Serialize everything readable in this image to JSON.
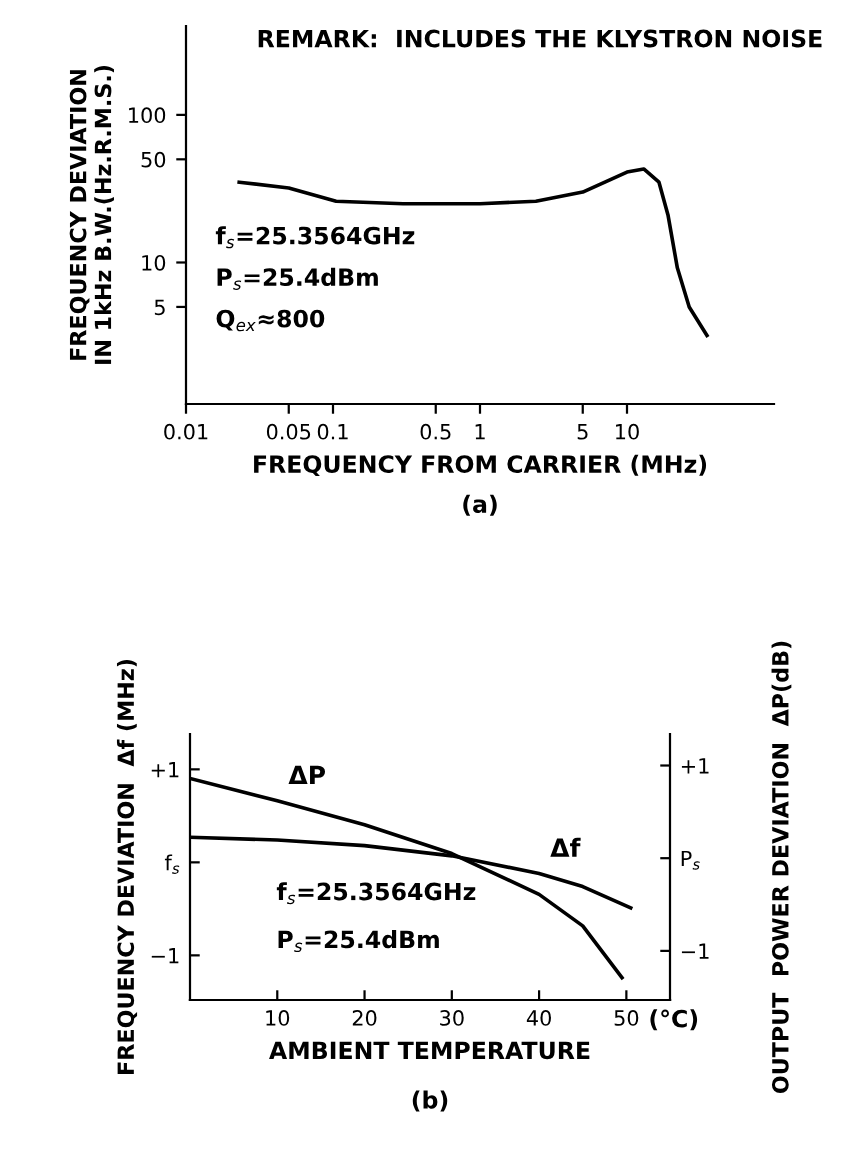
{
  "chart_data": [
    {
      "type": "line",
      "title": "REMARK:  INCLUDES THE KLYSTRON NOISE",
      "xlabel": "FREQUENCY FROM CARRIER (MHz)",
      "ylabel": "FREQUENCY DEVIATION\nIN 1kHz B.W.(Hz.R.M.S.)",
      "log": "xy",
      "series": [
        {
          "color": "#000000",
          "x": [
            0.023,
            0.05,
            0.105,
            0.3,
            1,
            2.4,
            5,
            10,
            13,
            16.5,
            19,
            22,
            26.5,
            35
          ],
          "values": [
            35,
            32,
            26,
            25,
            25,
            26,
            30,
            41,
            43,
            35,
            21,
            9.2,
            5,
            3.2
          ]
        }
      ],
      "xlim": [
        0.01,
        100
      ],
      "ylim": [
        1.1,
        400
      ],
      "xticks": [
        0.01,
        0.05,
        0.1,
        0.5,
        1,
        5,
        10
      ],
      "yticks": [
        5,
        10,
        50,
        100
      ],
      "annotations": [
        "f$_{s}$=25.3564GHz",
        "P$_{s}$=25.4dBm",
        "Q$_{ex}$≈800",
        "(a)"
      ],
      "grid": false,
      "legend": false
    },
    {
      "type": "line",
      "xlabel": "AMBIENT TEMPERATURE",
      "ylabel": "FREQUENCY DEVIATION  Δf (MHz)",
      "y2label": "OUTPUT  POWER DEVIATION  ΔP(dB)",
      "series": [
        {
          "name": "ΔP",
          "color": "#000000",
          "axis": "y2",
          "x": [
            0,
            10,
            20,
            30,
            40,
            45,
            49.5
          ],
          "values": [
            0.86,
            0.62,
            0.36,
            0.05,
            -0.39,
            -0.73,
            -1.29
          ]
        },
        {
          "name": "Δf",
          "color": "#000000",
          "x": [
            0,
            10,
            20,
            30,
            40,
            45,
            50.5
          ],
          "values": [
            0.27,
            0.24,
            0.18,
            0.07,
            -0.12,
            -0.26,
            -0.49
          ]
        }
      ],
      "xlim": [
        0,
        55
      ],
      "ylim": [
        -1.48,
        1.38
      ],
      "y2lim": [
        -1.53,
        1.34
      ],
      "xticks": [
        10,
        20,
        30,
        40,
        50
      ],
      "yticks": [
        {
          "value": 1,
          "label": "+1"
        },
        {
          "value": 0,
          "label": "f$_{s}$"
        },
        {
          "value": -1,
          "label": "−1"
        }
      ],
      "y2ticks": [
        {
          "value": 1,
          "label": "+1"
        },
        {
          "value": 0,
          "label": "P$_{s}$"
        },
        {
          "value": -1,
          "label": "−1"
        }
      ],
      "annotations": [
        "f$_{s}$=25.3564GHz",
        "P$_{s}$=25.4dBm",
        "(°C)",
        "(b)"
      ],
      "grid": false,
      "legend": false
    }
  ]
}
